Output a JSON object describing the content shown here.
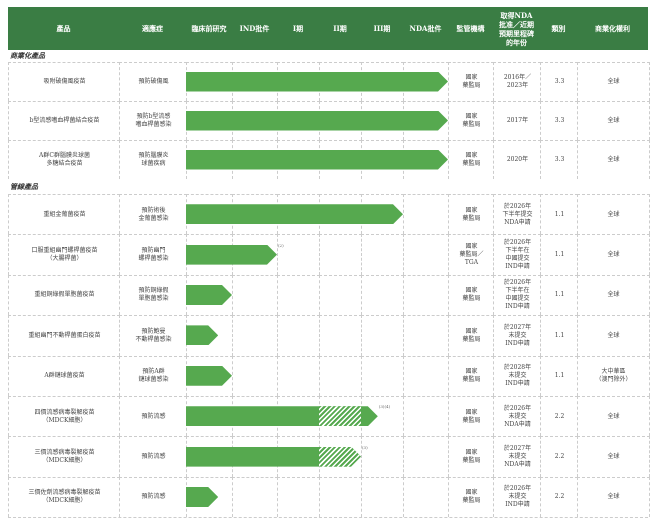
{
  "header": [
    "產品",
    "適應症",
    "臨床前研究",
    "IND批件",
    "I期",
    "II期",
    "III期",
    "NDA批件",
    "監管機構",
    "取得NDA\n批准／近期\n預期里程碑\n的年份",
    "類別",
    "商業化權利"
  ],
  "sections": {
    "commercial": "商業化產品",
    "pipeline": "管線產品"
  },
  "colors": {
    "header": "#3a7d44",
    "bar": "#56a94f"
  },
  "phases": [
    "臨床前研究",
    "IND批件",
    "I期",
    "II期",
    "III期",
    "NDA批件"
  ],
  "commercial_rows": [
    {
      "product": "吸附破傷風疫苗",
      "indication": "預防破傷風",
      "stage_reached": "NDA批件",
      "regulator": "國家\n藥監局",
      "year": "2016年／\n2023年",
      "year_note": "(1)",
      "category": "3.3",
      "rights": "全球"
    },
    {
      "product": "b型流感嗜血桿菌結合疫苗",
      "indication": "預防b型流感\n嗜血桿菌感染",
      "stage_reached": "NDA批件",
      "regulator": "國家\n藥監局",
      "year": "2017年",
      "category": "3.3",
      "rights": "全球"
    },
    {
      "product": "A群C群腦膜炎球菌\n多糖結合疫苗",
      "indication": "預防腦膜炎\n球菌疾病",
      "stage_reached": "NDA批件",
      "regulator": "國家\n藥監局",
      "year": "2020年",
      "category": "3.3",
      "rights": "全球"
    }
  ],
  "pipeline_rows": [
    {
      "product": "重組金葡菌疫苗",
      "indication": "預防術後\n金葡菌感染",
      "progress_phases": 5.0,
      "regulator": "國家\n藥監局",
      "year": "於2026年\n下半年提交\nNDA申請",
      "category": "1.1",
      "rights": "全球"
    },
    {
      "product": "口服重組幽門螺桿菌疫苗\n（大腸桿菌）",
      "indication": "預防幽門\n螺桿菌感染",
      "progress_phases": 2.0,
      "note": "(2)",
      "regulator": "國家\n藥監局／\nTGA",
      "year": "於2026年\n下半年在\n中國提交\nIND申請",
      "category": "1.1",
      "rights": "全球"
    },
    {
      "product": "重組銅綠假單胞菌疫苗",
      "indication": "預防銅綠假\n單胞菌感染",
      "progress_phases": 1.0,
      "regulator": "國家\n藥監局",
      "year": "於2026年\n下半年在\n中國提交\nIND申請",
      "category": "1.1",
      "rights": "全球"
    },
    {
      "product": "重組幽門不動桿菌蛋白疫苗",
      "indication": "預防鮑曼\n不動桿菌感染",
      "progress_phases": 0.7,
      "regulator": "國家\n藥監局",
      "year": "於2027年\n末提交\nIND申請",
      "category": "1.1",
      "rights": "全球"
    },
    {
      "product": "A群鏈球菌疫苗",
      "indication": "預防A群\n鏈球菌感染",
      "progress_phases": 1.0,
      "regulator": "國家\n藥監局",
      "year": "於2028年\n末提交\nIND申請",
      "category": "1.1",
      "rights": "大中華區\n（澳門除外）"
    },
    {
      "product": "四價流感病毒裂解疫苗\n（MDCK細胞）",
      "product_note": "(3)",
      "indication": "預防流感",
      "progress_phases": 4.4,
      "hatched_phase": "II期",
      "note": "(3)(4)",
      "regulator": "國家\n藥監局",
      "year": "於2026年\n末提交\nNDA申請",
      "category": "2.2",
      "rights": "全球"
    },
    {
      "product": "三價流感病毒裂解疫苗\n（MDCK細胞）",
      "product_note": "(3)",
      "indication": "預防流感",
      "progress_phases": 4.0,
      "hatched_phase": "II期",
      "note": "(3)",
      "regulator": "國家\n藥監局",
      "year": "於2027年\n末提交\nNDA申請",
      "category": "2.2",
      "rights": "全球"
    },
    {
      "product": "三價佐劑流感病毒裂解疫苗\n（MDCK細胞）",
      "product_note": "(3)",
      "indication": "預防流感",
      "progress_phases": 0.7,
      "regulator": "國家\n藥監局",
      "year": "於2026年\n末提交\nIND申請",
      "category": "2.2",
      "rights": "全球"
    }
  ]
}
